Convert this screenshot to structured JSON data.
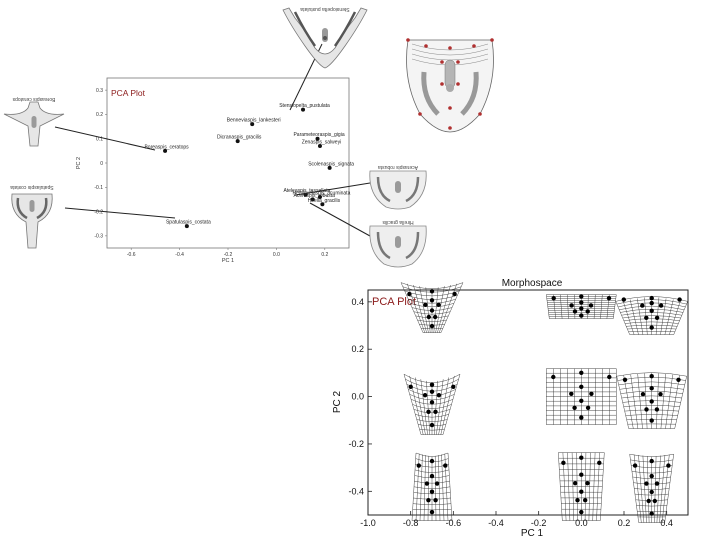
{
  "chart_data": [
    {
      "type": "scatter",
      "plot_label": "PCA Plot",
      "xlabel": "PC 1",
      "ylabel": "PC 2",
      "xlim": [
        -0.7,
        0.3
      ],
      "ylim": [
        -0.35,
        0.35
      ],
      "xticks": [
        "-0.6",
        "-0.4",
        "-0.2",
        "0.0",
        "0.2"
      ],
      "yticks": [
        "0.3",
        "0.2",
        "0.1",
        "0",
        "-0.1",
        "-0.2",
        "-0.3"
      ],
      "points": [
        {
          "label": "Stensiopelta_pustulata",
          "x": 0.11,
          "y": 0.22
        },
        {
          "label": "Benneviaspis_lankesteri",
          "x": -0.1,
          "y": 0.16
        },
        {
          "label": "Parameteoraspis_gigia",
          "x": 0.17,
          "y": 0.1
        },
        {
          "label": "Dicranaspis_gracilis",
          "x": -0.16,
          "y": 0.09
        },
        {
          "label": "Zenaspis_salweyi",
          "x": 0.18,
          "y": 0.07
        },
        {
          "label": "Boreaspis_ceratops",
          "x": -0.46,
          "y": 0.05
        },
        {
          "label": "Scolenaspis_signata",
          "x": 0.22,
          "y": -0.02
        },
        {
          "label": "Ateleaspis_tessellata",
          "x": 0.12,
          "y": -0.13
        },
        {
          "label": "Aceraspis_robusta",
          "x": 0.15,
          "y": -0.15
        },
        {
          "label": "Hemicyclaspis_acuminata",
          "x": 0.18,
          "y": -0.14
        },
        {
          "label": "Hirella_gracilis",
          "x": 0.19,
          "y": -0.17
        },
        {
          "label": "Spatulaspis_costata",
          "x": -0.37,
          "y": -0.26
        }
      ]
    },
    {
      "type": "scatter",
      "title": "Morphospace",
      "plot_label": "PCA Plot",
      "xlabel": "PC 1",
      "ylabel": "PC 2",
      "xlim": [
        -1.0,
        0.5
      ],
      "ylim": [
        -0.5,
        0.45
      ],
      "xticks": [
        "-1.0",
        "-0.8",
        "-0.6",
        "-0.4",
        "-0.2",
        "0.0",
        "0.2",
        "0.4"
      ],
      "yticks": [
        "0.4",
        "0.2",
        "0.0",
        "-0.2",
        "-0.4"
      ],
      "shape_grids": [
        {
          "x": -0.7,
          "y": 0.38,
          "form": "spread"
        },
        {
          "x": 0.0,
          "y": 0.38,
          "form": "flat"
        },
        {
          "x": 0.33,
          "y": 0.38,
          "form": "wide"
        },
        {
          "x": -0.7,
          "y": 0.0,
          "form": "tapered"
        },
        {
          "x": 0.0,
          "y": 0.0,
          "form": "square"
        },
        {
          "x": 0.33,
          "y": 0.0,
          "form": "rounded"
        },
        {
          "x": -0.7,
          "y": -0.38,
          "form": "narrow"
        },
        {
          "x": 0.0,
          "y": -0.38,
          "form": "barrel"
        },
        {
          "x": 0.33,
          "y": -0.38,
          "form": "vase"
        }
      ]
    }
  ],
  "skull_captions": {
    "top": "Stensiopelta pustulata",
    "left_upper": "Boreaspis ceratops",
    "left_lower": "Spatulaspis costata",
    "right_upper": "Aceraspis robusta",
    "right_lower": "Hirella gracilis"
  }
}
